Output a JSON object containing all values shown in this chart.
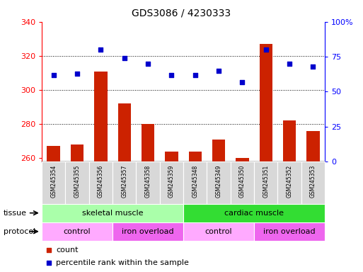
{
  "title": "GDS3086 / 4230333",
  "samples": [
    "GSM245354",
    "GSM245355",
    "GSM245356",
    "GSM245357",
    "GSM245358",
    "GSM245359",
    "GSM245348",
    "GSM245349",
    "GSM245350",
    "GSM245351",
    "GSM245352",
    "GSM245353"
  ],
  "counts": [
    267,
    268,
    311,
    292,
    280,
    264,
    264,
    271,
    260,
    327,
    282,
    276
  ],
  "percentile": [
    62,
    63,
    80,
    74,
    70,
    62,
    62,
    65,
    57,
    80,
    70,
    68
  ],
  "ylim_left": [
    258,
    340
  ],
  "ylim_right": [
    0,
    100
  ],
  "yticks_left": [
    260,
    280,
    300,
    320,
    340
  ],
  "yticks_right": [
    0,
    25,
    50,
    75,
    100
  ],
  "ytick_right_labels": [
    "0",
    "25",
    "50",
    "75",
    "100%"
  ],
  "tissue_groups": [
    {
      "label": "skeletal muscle",
      "start": 0,
      "end": 6,
      "color": "#aaffaa"
    },
    {
      "label": "cardiac muscle",
      "start": 6,
      "end": 12,
      "color": "#33dd33"
    }
  ],
  "protocol_groups": [
    {
      "label": "control",
      "start": 0,
      "end": 3,
      "color": "#ffaaff"
    },
    {
      "label": "iron overload",
      "start": 3,
      "end": 6,
      "color": "#ee66ee"
    },
    {
      "label": "control",
      "start": 6,
      "end": 9,
      "color": "#ffaaff"
    },
    {
      "label": "iron overload",
      "start": 9,
      "end": 12,
      "color": "#ee66ee"
    }
  ],
  "bar_color": "#cc2200",
  "scatter_color": "#0000cc",
  "bar_width": 0.55,
  "background_color": "#ffffff",
  "plot_bg_color": "#ffffff",
  "xticklabel_bg": "#d8d8d8",
  "grid_color": "#000000",
  "hgrid_ticks": [
    280,
    300,
    320
  ]
}
